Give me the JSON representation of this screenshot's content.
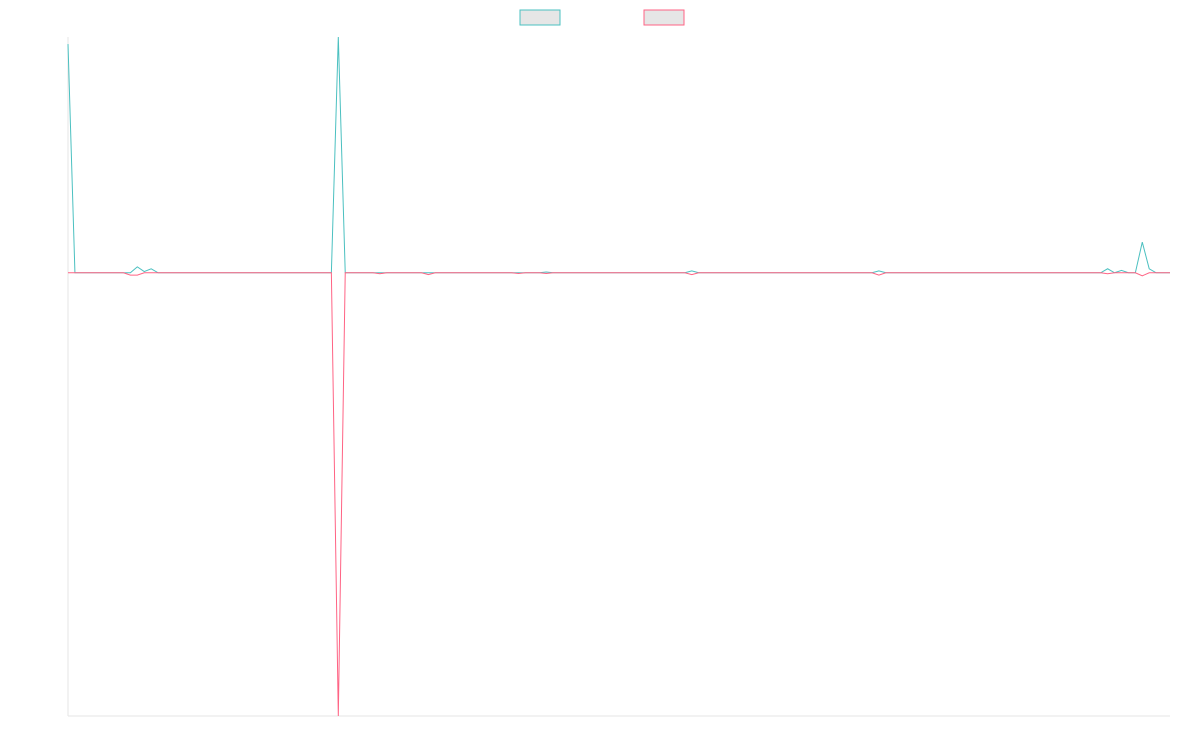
{
  "chart_data": {
    "type": "line",
    "ylim": [
      -1.88,
      1
    ],
    "legend": "top",
    "series": [
      {
        "color": "#4bc0c0",
        "values": [
          0.97,
          0,
          0,
          0,
          0,
          0,
          0,
          0,
          0,
          0,
          0.025,
          0.005,
          0.017,
          0,
          0,
          0,
          0,
          0,
          0,
          0,
          0,
          0,
          0,
          0,
          0,
          0,
          0,
          0,
          0,
          0,
          0,
          0,
          0,
          0,
          0,
          0,
          0,
          0,
          0,
          1,
          0,
          0,
          0,
          0,
          0,
          0,
          0,
          0,
          0,
          0,
          0,
          0,
          0,
          0,
          0,
          0,
          0,
          0,
          0,
          0,
          0,
          0,
          0,
          0,
          0,
          0,
          0,
          0,
          0,
          0.003,
          0,
          0,
          0,
          0,
          0,
          0,
          0,
          0,
          0,
          0,
          0,
          0,
          0,
          0,
          0,
          0,
          0,
          0,
          0,
          0,
          0.008,
          0,
          0,
          0,
          0,
          0,
          0,
          0,
          0,
          0,
          0,
          0,
          0,
          0,
          0,
          0,
          0,
          0,
          0,
          0,
          0,
          0,
          0,
          0,
          0,
          0,
          0,
          0.008,
          0,
          0,
          0,
          0,
          0,
          0,
          0,
          0,
          0,
          0,
          0,
          0,
          0,
          0,
          0,
          0,
          0,
          0,
          0,
          0,
          0,
          0,
          0,
          0,
          0,
          0,
          0,
          0,
          0,
          0,
          0,
          0,
          0.017,
          0,
          0.01,
          0,
          0,
          0.13,
          0.017,
          0,
          0,
          0
        ]
      },
      {
        "color": "#ff6384",
        "values": [
          0,
          0,
          0,
          0,
          0,
          0,
          0,
          0,
          0,
          -0.01,
          -0.01,
          0,
          0,
          0,
          0,
          0,
          0,
          0,
          0,
          0,
          0,
          0,
          0,
          0,
          0,
          0,
          0,
          0,
          0,
          0,
          0,
          0,
          0,
          0,
          0,
          0,
          0,
          0,
          0,
          -1.88,
          0,
          0,
          0,
          0,
          0,
          -0.004,
          0,
          0,
          0,
          0,
          0,
          0,
          -0.008,
          0,
          0,
          0,
          0,
          0,
          0,
          0,
          0,
          0,
          0,
          0,
          0,
          -0.003,
          0,
          0,
          0,
          -0.003,
          0,
          0,
          0,
          0,
          0,
          0,
          0,
          0,
          0,
          0,
          0,
          0,
          0,
          0,
          0,
          0,
          0,
          0,
          0,
          0,
          -0.008,
          0,
          0,
          0,
          0,
          0,
          0,
          0,
          0,
          0,
          0,
          0,
          0,
          0,
          0,
          0,
          0,
          0,
          0,
          0,
          0,
          0,
          0,
          0,
          0,
          0,
          0,
          -0.01,
          0,
          0,
          0,
          0,
          0,
          0,
          0,
          0,
          0,
          0,
          0,
          0,
          0,
          0,
          0,
          0,
          0,
          0,
          0,
          0,
          0,
          0,
          0,
          0,
          0,
          0,
          0,
          0,
          0,
          0,
          0,
          0,
          -0.004,
          0,
          0,
          0,
          0,
          -0.013,
          0,
          0,
          0,
          0
        ]
      }
    ]
  }
}
